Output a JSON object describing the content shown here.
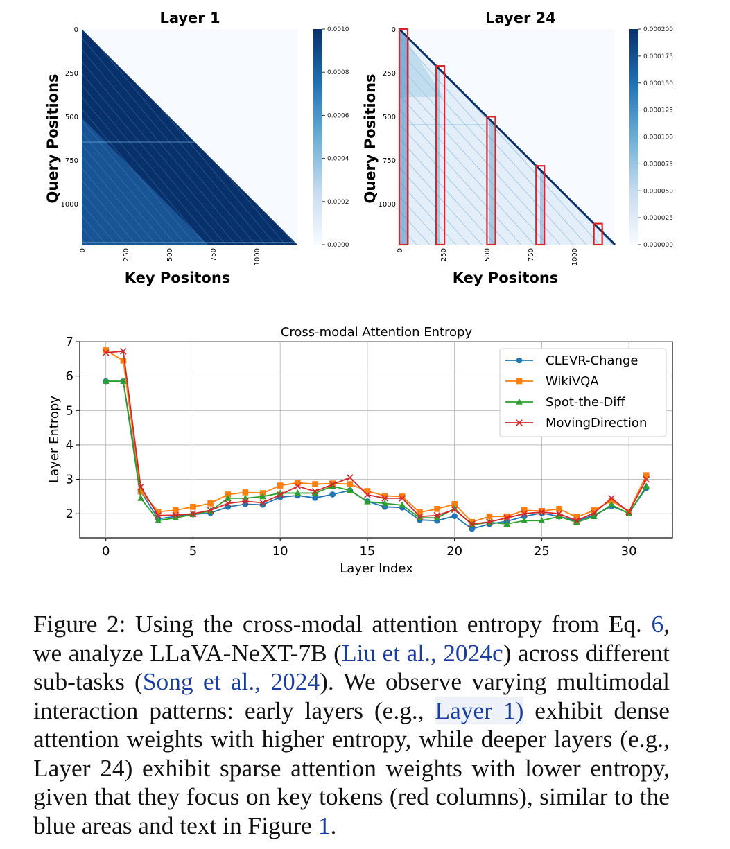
{
  "heatmaps": [
    {
      "title": "Layer 1",
      "ylabel": "Query Positions",
      "xlabel": "Key Positons",
      "yticks": [
        "0",
        "250",
        "500",
        "750",
        "1000"
      ],
      "xticks": [
        "0",
        "250",
        "500",
        "750",
        "1000"
      ],
      "colorbar_ticks": [
        "0.0010",
        "0.0008",
        "0.0006",
        "0.0004",
        "0.0002",
        "0.0000"
      ],
      "max_position": 1230,
      "red_box_positions": []
    },
    {
      "title": "Layer 24",
      "ylabel": "Query Positions",
      "xlabel": "Key Positons",
      "yticks": [
        "0",
        "250",
        "500",
        "750",
        "1000"
      ],
      "xticks": [
        "0",
        "250",
        "500",
        "750",
        "1000"
      ],
      "colorbar_ticks": [
        "0.000200",
        "0.000175",
        "0.000150",
        "0.000125",
        "0.000100",
        "0.000075",
        "0.000050",
        "0.000025",
        "0.000000"
      ],
      "max_position": 1230,
      "red_box_positions": [
        0,
        210,
        500,
        780,
        1110
      ]
    }
  ],
  "chart_data": {
    "type": "line",
    "title": "Cross-modal Attention Entropy",
    "xlabel": "Layer Index",
    "ylabel": "Layer Entropy",
    "xlim": [
      -1.5,
      32.5
    ],
    "ylim": [
      1.3,
      7.0
    ],
    "xticks": [
      0,
      5,
      10,
      15,
      20,
      25,
      30
    ],
    "yticks": [
      2,
      3,
      4,
      5,
      6,
      7
    ],
    "grid": true,
    "legend_position": "top-right",
    "x": [
      0,
      1,
      2,
      3,
      4,
      5,
      6,
      7,
      8,
      9,
      10,
      11,
      12,
      13,
      14,
      15,
      16,
      17,
      18,
      19,
      20,
      21,
      22,
      23,
      24,
      25,
      26,
      27,
      28,
      29,
      30,
      31
    ],
    "series": [
      {
        "name": "CLEVR-Change",
        "color": "#1f77b4",
        "marker": "circle",
        "values": [
          5.85,
          5.85,
          2.65,
          1.85,
          1.92,
          1.98,
          2.02,
          2.2,
          2.28,
          2.26,
          2.48,
          2.53,
          2.46,
          2.56,
          2.68,
          2.36,
          2.2,
          2.18,
          1.82,
          1.8,
          1.93,
          1.56,
          1.7,
          1.78,
          1.92,
          2.02,
          1.92,
          1.8,
          1.95,
          2.22,
          2.02,
          2.75
        ]
      },
      {
        "name": "WikiVQA",
        "color": "#ff7f0e",
        "marker": "square",
        "values": [
          6.75,
          6.45,
          2.65,
          2.06,
          2.1,
          2.2,
          2.3,
          2.56,
          2.62,
          2.6,
          2.82,
          2.9,
          2.86,
          2.88,
          2.86,
          2.66,
          2.52,
          2.5,
          2.04,
          2.14,
          2.28,
          1.76,
          1.92,
          1.92,
          2.1,
          2.08,
          2.14,
          1.9,
          2.1,
          2.38,
          2.06,
          3.12
        ]
      },
      {
        "name": "Spot-the-Diff",
        "color": "#2ca02c",
        "marker": "triangle",
        "values": [
          5.85,
          5.85,
          2.45,
          1.8,
          1.88,
          1.98,
          2.08,
          2.45,
          2.45,
          2.5,
          2.6,
          2.6,
          2.6,
          2.8,
          2.68,
          2.35,
          2.3,
          2.25,
          1.88,
          1.88,
          2.15,
          1.68,
          1.75,
          1.7,
          1.8,
          1.8,
          1.92,
          1.75,
          1.92,
          2.26,
          2.0,
          2.8
        ]
      },
      {
        "name": "MovingDirection",
        "color": "#d62728",
        "marker": "x",
        "values": [
          6.68,
          6.72,
          2.78,
          1.95,
          1.96,
          2.0,
          2.1,
          2.3,
          2.36,
          2.32,
          2.55,
          2.8,
          2.65,
          2.85,
          3.05,
          2.55,
          2.45,
          2.45,
          1.92,
          1.95,
          2.12,
          1.7,
          1.76,
          1.88,
          2.0,
          2.05,
          2.0,
          1.8,
          2.02,
          2.45,
          2.05,
          3.0
        ]
      }
    ]
  },
  "caption": {
    "label": "Figure 2:",
    "t1": "Using the cross-modal attention entropy from Eq.",
    "ref_eq": "6",
    "t2": ", we analyze LLaVA-NeXT-7B (",
    "ref_liu": "Liu et al., 2024c",
    "t3": ") across different sub-tasks (",
    "ref_song": "Song et al., 2024",
    "t4": "). We observe varying multimodal interaction patterns: early layers (e.g.,",
    "ref_layer1": "Layer 1)",
    "t5": "exhibit dense attention weights with higher entropy, while deeper layers (e.g., Layer 24) exhibit sparse attention weights with lower entropy, given that they focus on key tokens (red columns), similar to the blue areas and text in Figure",
    "ref_fig": "1",
    "t6": "."
  }
}
